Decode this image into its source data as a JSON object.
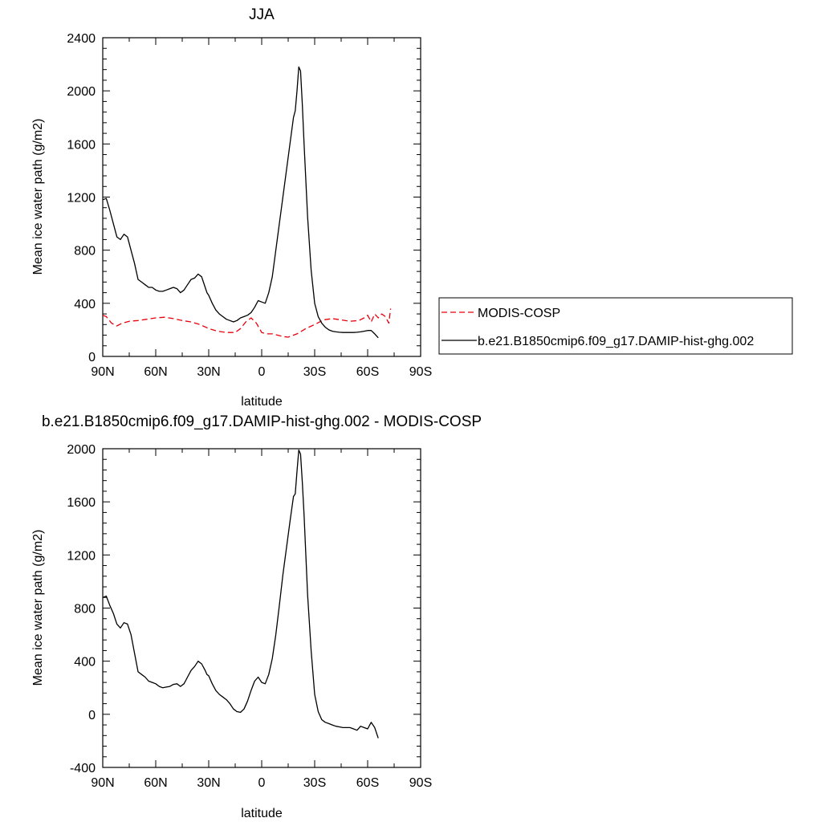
{
  "chart_data": [
    {
      "type": "line",
      "title": "JJA",
      "xlabel": "latitude",
      "ylabel": "Mean ice water path (g/m2)",
      "xlim": [
        90,
        -90
      ],
      "ylim": [
        0,
        2400
      ],
      "xticks": [
        {
          "value": 90,
          "label": "90N"
        },
        {
          "value": 60,
          "label": "60N"
        },
        {
          "value": 30,
          "label": "30N"
        },
        {
          "value": 0,
          "label": "0"
        },
        {
          "value": -30,
          "label": "30S"
        },
        {
          "value": -60,
          "label": "60S"
        },
        {
          "value": -90,
          "label": "90S"
        }
      ],
      "yticks": [
        {
          "value": 0,
          "label": "0"
        },
        {
          "value": 400,
          "label": "400"
        },
        {
          "value": 800,
          "label": "800"
        },
        {
          "value": 1200,
          "label": "1200"
        },
        {
          "value": 1600,
          "label": "1600"
        },
        {
          "value": 2000,
          "label": "2000"
        },
        {
          "value": 2400,
          "label": "2400"
        }
      ],
      "grid": false,
      "legend": "right",
      "series": [
        {
          "name": "MODIS-COSP",
          "color": "#e8000b",
          "dash": "dashed",
          "x": [
            90,
            88,
            85,
            82,
            79,
            75,
            70,
            65,
            60,
            55,
            50,
            45,
            40,
            35,
            30,
            25,
            20,
            15,
            12,
            9,
            6,
            3,
            0,
            -3,
            -6,
            -9,
            -12,
            -15,
            -20,
            -25,
            -30,
            -35,
            -40,
            -45,
            -50,
            -55,
            -58,
            -60,
            -62,
            -64,
            -66,
            -68,
            -70,
            -72,
            -73
          ],
          "y": [
            310,
            300,
            250,
            230,
            250,
            265,
            270,
            280,
            290,
            295,
            285,
            270,
            260,
            240,
            210,
            190,
            180,
            180,
            210,
            260,
            290,
            250,
            180,
            170,
            170,
            160,
            150,
            145,
            170,
            210,
            240,
            275,
            285,
            275,
            265,
            270,
            290,
            310,
            260,
            320,
            290,
            320,
            300,
            250,
            360
          ]
        },
        {
          "name": "b.e21.B1850cmip6.f09_g17.DAMIP-hist-ghg.002",
          "color": "#000000",
          "dash": "solid",
          "x": [
            90,
            88,
            86,
            84,
            82,
            80,
            78,
            76,
            74,
            72,
            70,
            68,
            66,
            64,
            62,
            60,
            58,
            56,
            54,
            52,
            50,
            48,
            46,
            44,
            42,
            40,
            38,
            36,
            34,
            32,
            31,
            30,
            28,
            26,
            24,
            22,
            20,
            18,
            16,
            14,
            12,
            10,
            8,
            6,
            4,
            2,
            0,
            -2,
            -4,
            -6,
            -8,
            -10,
            -12,
            -14,
            -16,
            -18,
            -19,
            -20,
            -21,
            -22,
            -23,
            -24,
            -26,
            -28,
            -30,
            -32,
            -34,
            -36,
            -38,
            -40,
            -42,
            -44,
            -46,
            -48,
            -50,
            -52,
            -54,
            -56,
            -58,
            -60,
            -62,
            -64,
            -66
          ],
          "y": [
            1180,
            1190,
            1100,
            1000,
            900,
            880,
            920,
            900,
            800,
            700,
            580,
            560,
            540,
            520,
            520,
            500,
            490,
            490,
            500,
            510,
            520,
            510,
            480,
            500,
            540,
            580,
            590,
            620,
            600,
            520,
            480,
            460,
            400,
            350,
            320,
            300,
            280,
            270,
            260,
            270,
            290,
            300,
            310,
            330,
            370,
            420,
            410,
            400,
            480,
            600,
            800,
            1000,
            1200,
            1400,
            1600,
            1800,
            1850,
            2000,
            2180,
            2150,
            1900,
            1600,
            1050,
            650,
            400,
            300,
            250,
            220,
            200,
            190,
            185,
            182,
            180,
            180,
            180,
            180,
            182,
            185,
            190,
            195,
            195,
            170,
            140
          ]
        }
      ]
    },
    {
      "type": "line",
      "title": "b.e21.B1850cmip6.f09_g17.DAMIP-hist-ghg.002 - MODIS-COSP",
      "xlabel": "latitude",
      "ylabel": "Mean ice water path (g/m2)",
      "xlim": [
        90,
        -90
      ],
      "ylim": [
        -400,
        2000
      ],
      "xticks": [
        {
          "value": 90,
          "label": "90N"
        },
        {
          "value": 60,
          "label": "60N"
        },
        {
          "value": 30,
          "label": "30N"
        },
        {
          "value": 0,
          "label": "0"
        },
        {
          "value": -30,
          "label": "30S"
        },
        {
          "value": -60,
          "label": "60S"
        },
        {
          "value": -90,
          "label": "90S"
        }
      ],
      "yticks": [
        {
          "value": -400,
          "label": "-400"
        },
        {
          "value": 0,
          "label": "0"
        },
        {
          "value": 400,
          "label": "400"
        },
        {
          "value": 800,
          "label": "800"
        },
        {
          "value": 1200,
          "label": "1200"
        },
        {
          "value": 1600,
          "label": "1600"
        },
        {
          "value": 2000,
          "label": "2000"
        }
      ],
      "grid": false,
      "series": [
        {
          "color": "#000000",
          "dash": "solid",
          "x": [
            90,
            88,
            86,
            84,
            82,
            80,
            78,
            76,
            74,
            72,
            70,
            68,
            66,
            64,
            62,
            60,
            58,
            56,
            54,
            52,
            50,
            48,
            46,
            44,
            42,
            40,
            38,
            36,
            34,
            32,
            31,
            30,
            28,
            26,
            24,
            22,
            20,
            18,
            16,
            14,
            12,
            10,
            8,
            6,
            4,
            2,
            0,
            -2,
            -4,
            -6,
            -8,
            -10,
            -12,
            -14,
            -16,
            -18,
            -19,
            -20,
            -21,
            -22,
            -23,
            -24,
            -26,
            -28,
            -30,
            -32,
            -34,
            -36,
            -38,
            -40,
            -42,
            -44,
            -46,
            -48,
            -50,
            -52,
            -54,
            -56,
            -58,
            -60,
            -62,
            -64,
            -66
          ],
          "y": [
            880,
            890,
            820,
            760,
            680,
            650,
            690,
            680,
            600,
            460,
            320,
            300,
            280,
            250,
            240,
            230,
            210,
            200,
            205,
            210,
            225,
            230,
            210,
            230,
            280,
            330,
            360,
            400,
            380,
            330,
            300,
            290,
            230,
            180,
            150,
            130,
            110,
            80,
            40,
            20,
            15,
            40,
            100,
            180,
            250,
            280,
            240,
            230,
            300,
            420,
            600,
            820,
            1050,
            1250,
            1450,
            1640,
            1660,
            1830,
            1990,
            1960,
            1750,
            1500,
            900,
            480,
            150,
            20,
            -40,
            -60,
            -70,
            -80,
            -90,
            -95,
            -100,
            -100,
            -100,
            -110,
            -120,
            -90,
            -100,
            -110,
            -60,
            -100,
            -180
          ]
        }
      ]
    }
  ]
}
